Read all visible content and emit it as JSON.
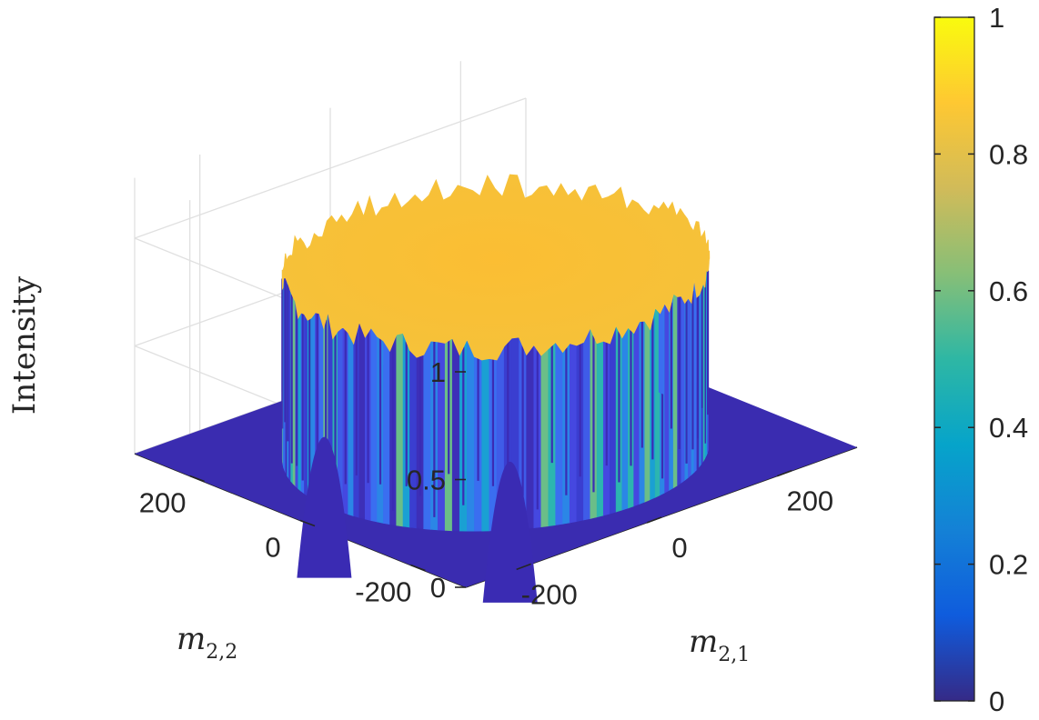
{
  "chart_data": {
    "type": "surface",
    "description_series": "flat-top cylindrical intensity distribution",
    "xlabel_base": "m",
    "xlabel_sub": "2,1",
    "ylabel_base": "m",
    "ylabel_sub": "2,2",
    "zlabel": "Intensity",
    "x_ticks": [
      "-200",
      "0",
      "200"
    ],
    "y_ticks": [
      "-200",
      "0",
      "200"
    ],
    "z_ticks": [
      "0",
      "0.5",
      "1"
    ],
    "xlim": [
      -300,
      300
    ],
    "ylim": [
      -300,
      300
    ],
    "zlim": [
      0,
      1
    ],
    "surface": {
      "shape": "disk",
      "radius": 250,
      "plateau_intensity": 0.85,
      "outside_intensity": 0.0,
      "edge_noise": 0.06
    },
    "grid": true,
    "colormap": "parula",
    "colorbar": {
      "ticks": [
        "0",
        "0.2",
        "0.4",
        "0.6",
        "0.8",
        "1"
      ],
      "tick_values": [
        0,
        0.2,
        0.4,
        0.6,
        0.8,
        1
      ],
      "range": [
        0,
        1
      ],
      "stops": [
        "#352a87",
        "#0f5cdd",
        "#1481d6",
        "#06a4ca",
        "#2eb7a4",
        "#87bf77",
        "#d1bb59",
        "#fec832",
        "#f9fb0e"
      ]
    }
  }
}
